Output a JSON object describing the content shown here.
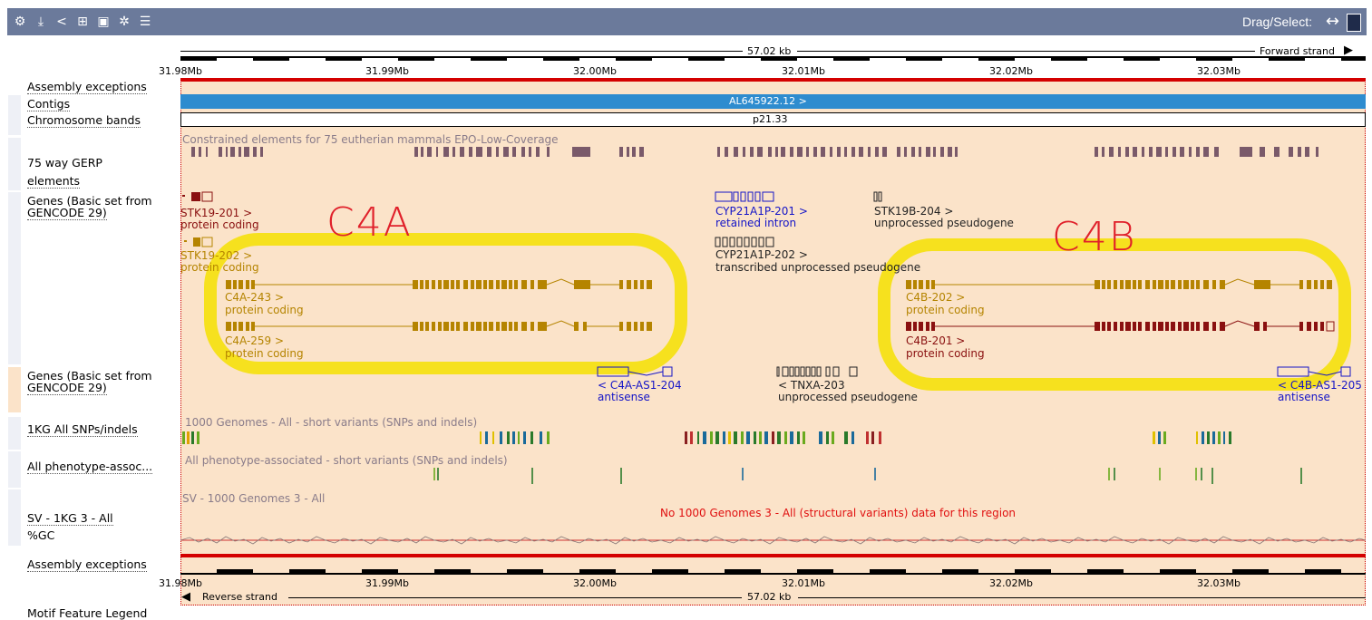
{
  "toolbar": {
    "icons": [
      "gear-icon",
      "export-icon",
      "share-icon",
      "resize-icon",
      "image-icon",
      "settings-icon",
      "tracks-icon"
    ],
    "drag_select_label": "Drag/Select:"
  },
  "ruler": {
    "length": "57.02 kb",
    "forward": "Forward strand",
    "reverse": "Reverse strand",
    "ticks": [
      "31.98Mb",
      "31.99Mb",
      "32.00Mb",
      "32.01Mb",
      "32.02Mb",
      "32.03Mb"
    ]
  },
  "tracks": {
    "assembly_exceptions": "Assembly exceptions",
    "contigs": "Contigs",
    "chromosome_bands": "Chromosome bands",
    "gerp_line1": "75 way GERP",
    "gerp_line2": "elements",
    "genes_fwd_line1": "Genes (Basic set from",
    "genes_fwd_line2": "GENCODE 29)",
    "genes_rev_line1": "Genes (Basic set from",
    "genes_rev_line2": "GENCODE 29)",
    "snps": "1KG All SNPs/indels",
    "phenotype": "All phenotype-assoc...",
    "sv": "SV - 1KG 3 - All",
    "gc": "%GC",
    "assembly_exceptions_bottom": "Assembly exceptions",
    "motif": "Motif Feature Legend"
  },
  "features": {
    "contig": "AL645922.12 >",
    "band": "p21.33",
    "gerp_title": "Constrained elements for 75 eutherian mammals EPO-Low-Coverage",
    "snps_title": "1000 Genomes - All - short variants (SNPs and indels)",
    "phenotype_title": "All phenotype-associated - short variants (SNPs and indels)",
    "sv_title": "SV - 1000 Genomes 3 - All",
    "sv_nodata": "No 1000 Genomes 3 - All (structural variants) data for this region"
  },
  "genes": {
    "stk19_201": "STK19-201 >",
    "stk19_201_type": "protein coding",
    "stk19_202": "STK19-202 >",
    "stk19_202_type": "protein coding",
    "c4a_243": "C4A-243 >",
    "c4a_243_type": "protein coding",
    "c4a_259": "C4A-259 >",
    "c4a_259_type": "protein coding",
    "cyp_201": "CYP21A1P-201 >",
    "cyp_201_type": "retained intron",
    "cyp_202": "CYP21A1P-202 >",
    "cyp_202_type": "transcribed unprocessed pseudogene",
    "stk19b_204": "STK19B-204 >",
    "stk19b_204_type": "unprocessed pseudogene",
    "c4b_202": "C4B-202 >",
    "c4b_202_type": "protein coding",
    "c4b_201": "C4B-201 >",
    "c4b_201_type": "protein coding",
    "c4a_as1": "< C4A-AS1-204",
    "c4a_as1_type": "antisense",
    "tnxa": "< TNXA-203",
    "tnxa_type": "unprocessed pseudogene",
    "c4b_as1": "< C4B-AS1-205",
    "c4b_as1_type": "antisense"
  },
  "annotations": {
    "left": "C4A",
    "right": "C4B"
  },
  "colors": {
    "toolbar": "#6b7a9b",
    "canvas": "#fbe3c9",
    "highlight": "#f4e000",
    "handwriting": "#e0202a"
  }
}
